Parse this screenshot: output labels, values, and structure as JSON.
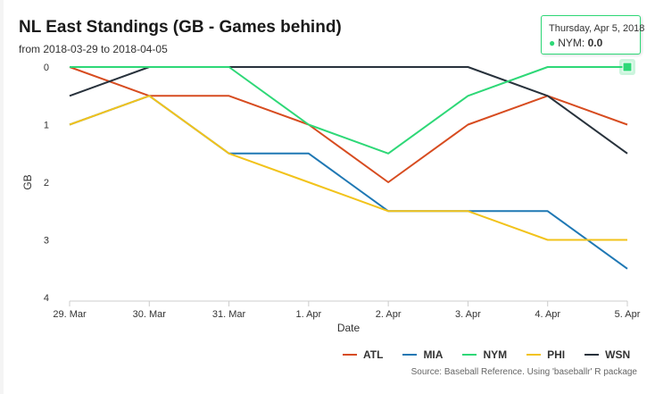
{
  "chart_data": {
    "type": "line",
    "title": "NL East Standings (GB - Games behind)",
    "subtitle": "from 2018-03-29 to 2018-04-05",
    "xlabel": "Date",
    "ylabel": "GB",
    "categories": [
      "29. Mar",
      "30. Mar",
      "31. Mar",
      "1. Apr",
      "2. Apr",
      "3. Apr",
      "4. Apr",
      "5. Apr"
    ],
    "y_ticks": [
      0,
      1,
      2,
      3,
      4
    ],
    "ylim": [
      0,
      4
    ],
    "y_reversed": true,
    "grid": false,
    "legend_position": "bottom-right",
    "series": [
      {
        "name": "ATL",
        "color": "#d74c20",
        "values": [
          0,
          0.5,
          0.5,
          1,
          2,
          1,
          0.5,
          1
        ]
      },
      {
        "name": "MIA",
        "color": "#1f78b4",
        "values": [
          1,
          0.5,
          1.5,
          1.5,
          2.5,
          2.5,
          2.5,
          3.5
        ]
      },
      {
        "name": "NYM",
        "color": "#2ed877",
        "values": [
          0,
          0,
          0,
          1,
          1.5,
          0.5,
          0,
          0
        ]
      },
      {
        "name": "PHI",
        "color": "#f2c31b",
        "values": [
          1,
          0.5,
          1.5,
          2,
          2.5,
          2.5,
          3,
          3
        ]
      },
      {
        "name": "WSN",
        "color": "#28323c",
        "values": [
          0.5,
          0,
          0,
          0,
          0,
          0,
          0.5,
          1.5
        ]
      }
    ],
    "credits": "Source: Baseball Reference. Using 'baseballr' R package",
    "tooltip": {
      "date": "Thursday, Apr 5, 2018",
      "series": "NYM",
      "value": "0.0",
      "color": "#2ed877"
    }
  }
}
